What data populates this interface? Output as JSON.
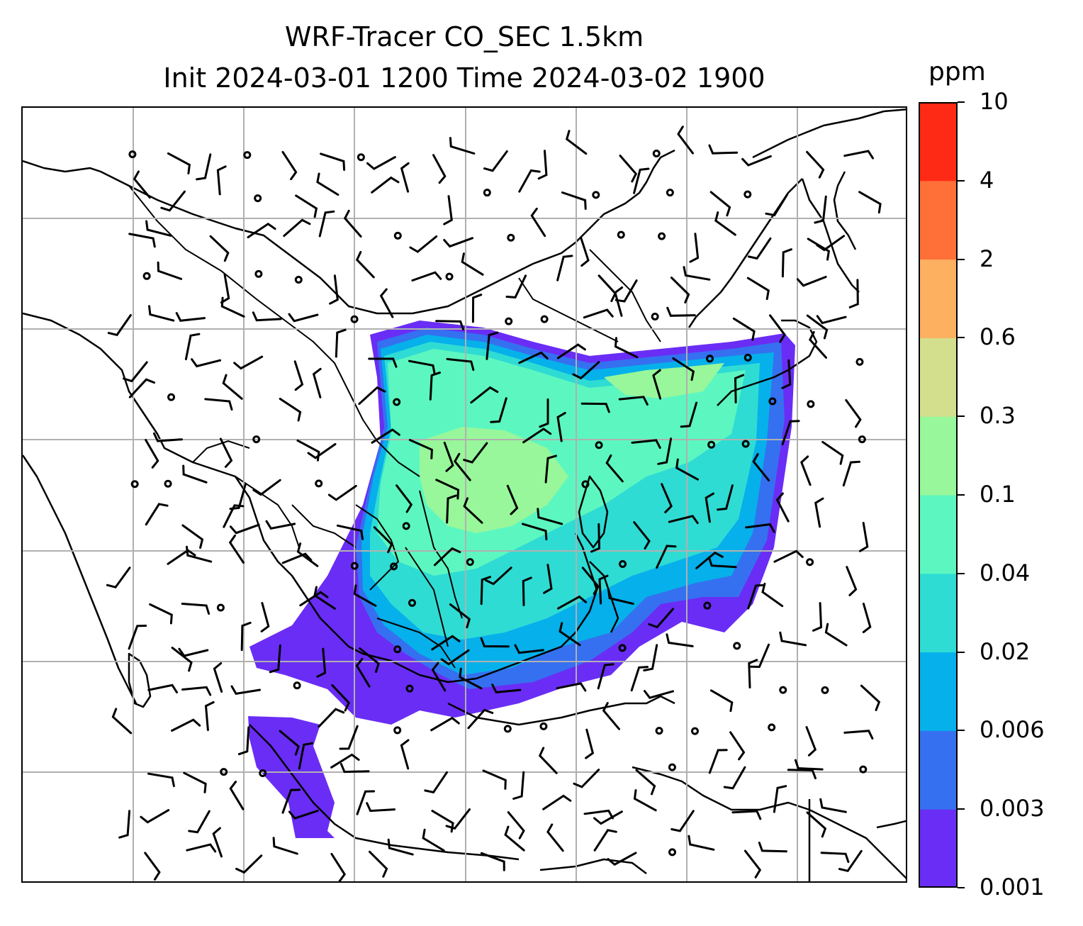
{
  "title": {
    "line1": "WRF-Tracer CO_SEC 1.5km",
    "line2": "Init 2024-03-01 1200 Time 2024-03-02 1900"
  },
  "colorbar": {
    "unit": "ppm",
    "tick_labels": [
      "0.001",
      "0.003",
      "0.006",
      "0.02",
      "0.04",
      "0.1",
      "0.3",
      "0.6",
      "2",
      "4",
      "10"
    ],
    "colors": [
      "#6a2df5",
      "#3570f0",
      "#06b0ea",
      "#2fdcd4",
      "#5cf7c0",
      "#98f79a",
      "#d3df8c",
      "#fcb060",
      "#ff7038",
      "#ff2a16"
    ]
  },
  "map": {
    "gridlines": "on",
    "features": [
      "coastlines",
      "country borders",
      "wind barbs",
      "tracer concentration fill"
    ]
  }
}
